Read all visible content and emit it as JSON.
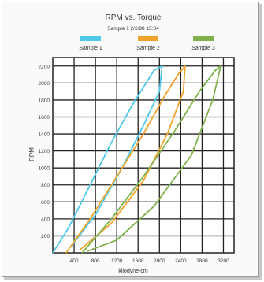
{
  "chart_data": {
    "type": "line",
    "title": "RPM vs. Torque",
    "subtitle": "Sample 1  2/2/98 15:04",
    "xlabel": "kilodyne-cm",
    "ylabel": "RPM",
    "xlim": [
      0,
      3400
    ],
    "ylim": [
      0,
      2300
    ],
    "xticks": [
      400,
      800,
      1200,
      1600,
      2000,
      2400,
      2800,
      3200
    ],
    "yticks": [
      200,
      400,
      600,
      800,
      1000,
      1200,
      1400,
      1600,
      1800,
      2000,
      2200
    ],
    "grid": true,
    "legend_position": "top",
    "series": [
      {
        "name": "Sample 1",
        "color": "#4fc8ea",
        "points": [
          [
            0,
            0
          ],
          [
            300,
            300
          ],
          [
            700,
            800
          ],
          [
            1100,
            1300
          ],
          [
            1500,
            1750
          ],
          [
            1900,
            2150
          ],
          [
            2050,
            2200
          ],
          [
            2000,
            1900
          ],
          [
            1700,
            1500
          ],
          [
            1300,
            1000
          ],
          [
            800,
            450
          ],
          [
            350,
            80
          ]
        ]
      },
      {
        "name": "Sample 2",
        "color": "#f0a32a",
        "points": [
          [
            250,
            0
          ],
          [
            700,
            400
          ],
          [
            1200,
            900
          ],
          [
            1700,
            1400
          ],
          [
            2100,
            1850
          ],
          [
            2350,
            2100
          ],
          [
            2480,
            2200
          ],
          [
            2450,
            1900
          ],
          [
            2150,
            1400
          ],
          [
            1700,
            850
          ],
          [
            1100,
            350
          ],
          [
            500,
            30
          ]
        ]
      },
      {
        "name": "Sample 3",
        "color": "#7fb24a",
        "points": [
          [
            550,
            0
          ],
          [
            1100,
            400
          ],
          [
            1700,
            900
          ],
          [
            2300,
            1450
          ],
          [
            2750,
            1900
          ],
          [
            3050,
            2150
          ],
          [
            3150,
            2200
          ],
          [
            3000,
            1800
          ],
          [
            2600,
            1150
          ],
          [
            1900,
            550
          ],
          [
            1200,
            150
          ],
          [
            650,
            20
          ]
        ]
      }
    ]
  }
}
